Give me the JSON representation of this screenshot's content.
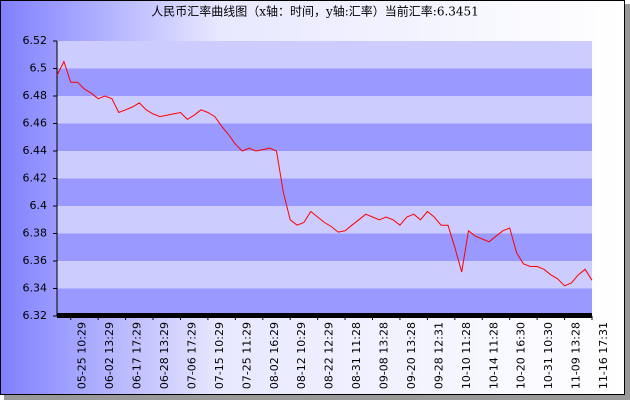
{
  "chart_data": {
    "type": "line",
    "title": "人民币汇率曲线图（x轴：时间，y轴:汇率）当前汇率:6.3451",
    "categories": [
      null,
      null,
      "05-25 10:29",
      null,
      null,
      null,
      "06-02 13:29",
      null,
      null,
      null,
      "06-17 17:29",
      null,
      null,
      null,
      "06-28 13:29",
      null,
      null,
      null,
      "07-06 17:29",
      null,
      null,
      null,
      "07-15 10:29",
      null,
      null,
      null,
      "07-25 11:29",
      null,
      null,
      null,
      "08-02 16:29",
      null,
      null,
      null,
      "08-12 10:29",
      null,
      null,
      null,
      "08-22 12:29",
      null,
      null,
      null,
      "08-31 11:28",
      null,
      null,
      null,
      "09-08 13:28",
      null,
      null,
      null,
      "09-20 13:28",
      null,
      null,
      null,
      "09-28 12:31",
      null,
      null,
      null,
      "10-10 11:28",
      null,
      null,
      null,
      "10-14 11:28",
      null,
      null,
      null,
      "10-20 16:30",
      null,
      null,
      null,
      "10-31 10:30",
      null,
      null,
      null,
      "11-09 13:28",
      null,
      null,
      null,
      "11-16 17:31"
    ],
    "series": [
      {
        "color": "#ff0000",
        "values": [
          6.495,
          6.505,
          6.49,
          6.49,
          6.485,
          6.482,
          6.478,
          6.48,
          6.478,
          6.468,
          6.47,
          6.472,
          6.475,
          6.47,
          6.467,
          6.465,
          6.466,
          6.467,
          6.468,
          6.463,
          6.466,
          6.47,
          6.468,
          6.465,
          6.458,
          6.452,
          6.445,
          6.44,
          6.442,
          6.44,
          6.441,
          6.442,
          6.44,
          6.41,
          6.39,
          6.386,
          6.388,
          6.396,
          6.392,
          6.388,
          6.385,
          6.381,
          6.382,
          6.386,
          6.39,
          6.394,
          6.392,
          6.39,
          6.392,
          6.39,
          6.386,
          6.392,
          6.394,
          6.39,
          6.396,
          6.392,
          6.386,
          6.386,
          6.37,
          6.352,
          6.382,
          6.378,
          6.376,
          6.374,
          6.378,
          6.382,
          6.384,
          6.366,
          6.358,
          6.356,
          6.356,
          6.354,
          6.35,
          6.347,
          6.342,
          6.344,
          6.35,
          6.354,
          6.346
        ]
      }
    ],
    "ylim": [
      6.32,
      6.52
    ],
    "yticks": [
      6.32,
      6.34,
      6.36,
      6.38,
      6.4,
      6.42,
      6.44,
      6.46,
      6.48,
      6.5,
      6.52
    ],
    "band_colors": [
      "#9999ff",
      "#ccccff"
    ]
  }
}
